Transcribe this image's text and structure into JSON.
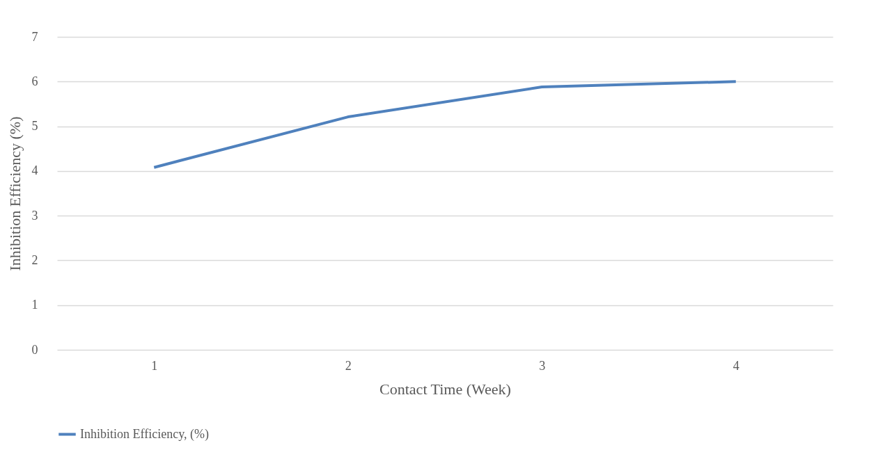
{
  "chart_data": {
    "type": "line",
    "xlabel": "Contact Time (Week)",
    "ylabel": "Inhibition Efficiency (%)",
    "categories": [
      "1",
      "2",
      "3",
      "4"
    ],
    "series": [
      {
        "name": "Inhibition Efficiency, (%)",
        "color": "#4f81bd",
        "values": [
          4.08,
          5.21,
          5.88,
          6.0
        ]
      }
    ],
    "ylim": [
      0,
      7
    ],
    "yticks": [
      0,
      1,
      2,
      3,
      4,
      5,
      6,
      7
    ],
    "grid": "y",
    "legend": "bottom",
    "marker": "none",
    "line_style": "solid"
  }
}
